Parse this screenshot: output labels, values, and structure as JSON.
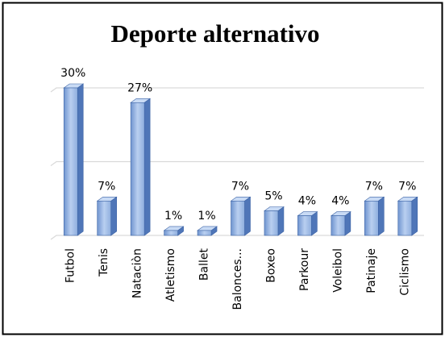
{
  "chart_data": {
    "type": "bar3d",
    "title": "Deporte alternativo",
    "categories": [
      "Futbol",
      "Tenis",
      "Nataciòn",
      "Atletismo",
      "Ballet",
      "Balonces...",
      "Boxeo",
      "Parkour",
      "Voleibol",
      "Patinaje",
      "Ciclismo"
    ],
    "values": [
      30,
      7,
      27,
      1,
      1,
      7,
      5,
      4,
      4,
      7,
      7
    ],
    "value_labels": [
      "30%",
      "7%",
      "27%",
      "1%",
      "1%",
      "7%",
      "5%",
      "4%",
      "4%",
      "7%",
      "7%"
    ],
    "color": "#95b3e0",
    "ylim": [
      0,
      30
    ],
    "yticks": [
      0,
      15,
      30
    ],
    "grid": true
  }
}
